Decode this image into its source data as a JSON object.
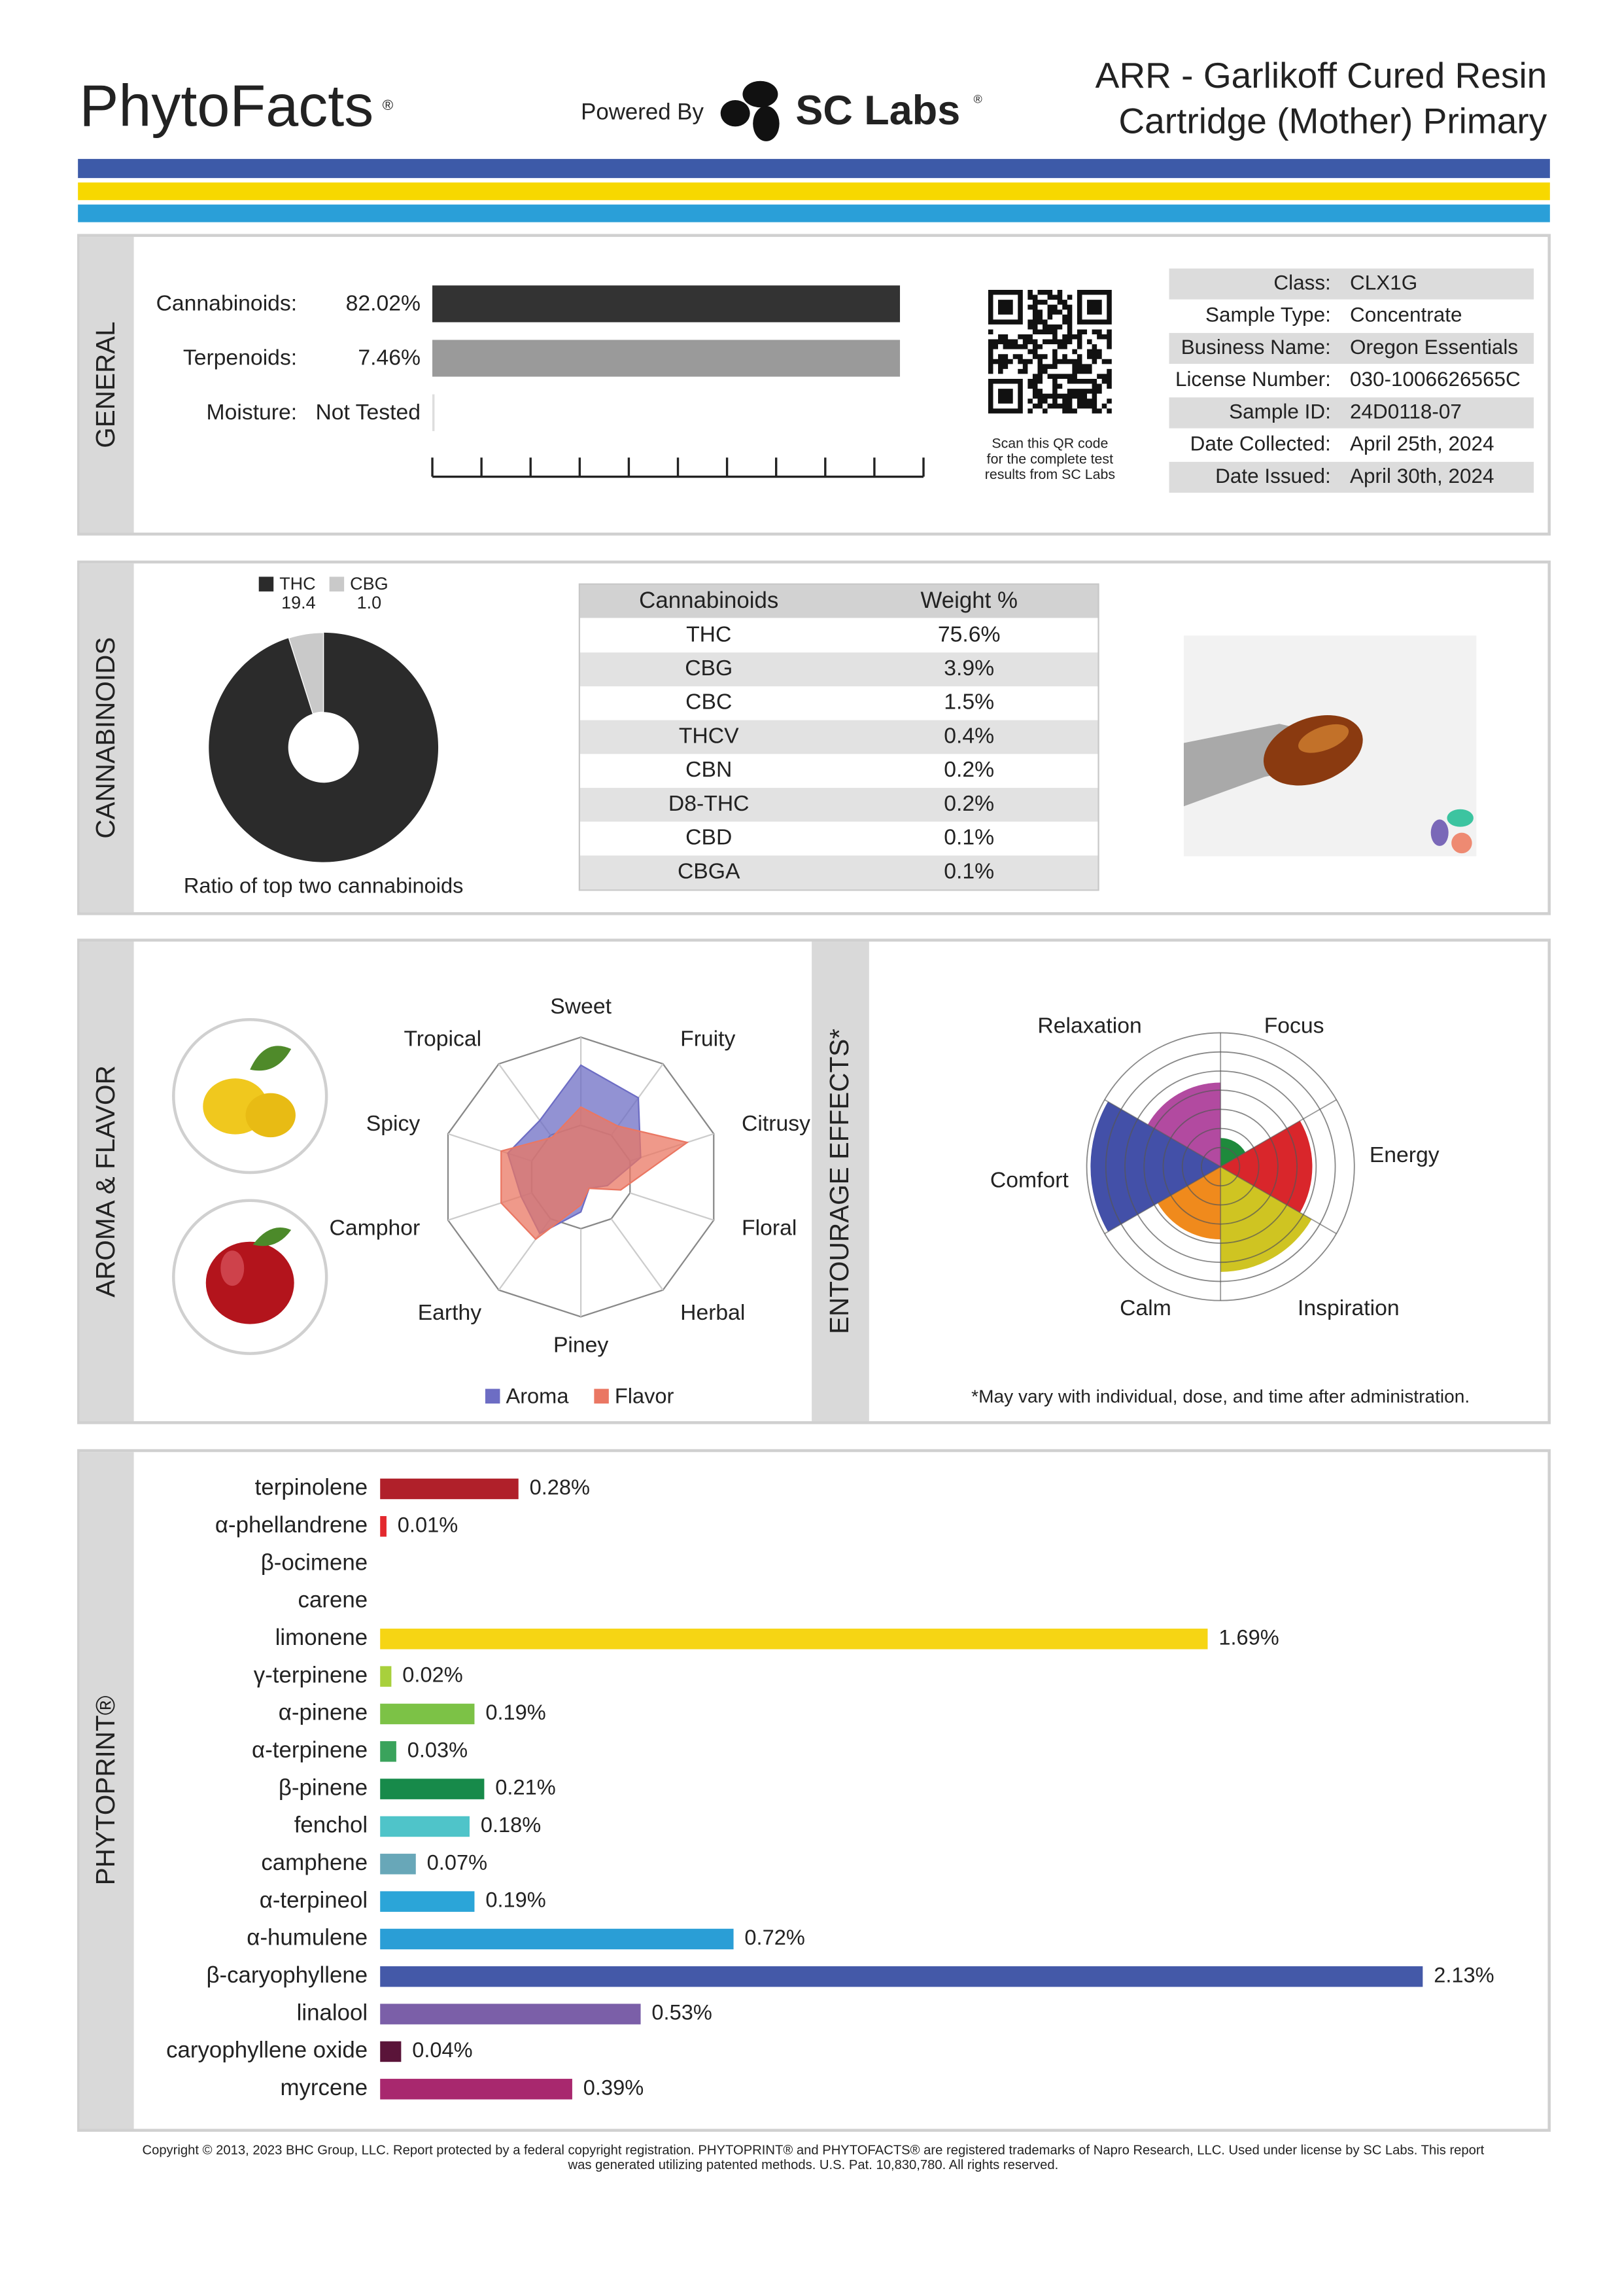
{
  "header": {
    "brand": "PhytoFacts",
    "brand_mark": "®",
    "powered_by": "Powered By",
    "lab": "SC Labs",
    "lab_mark": "®",
    "title_lines": [
      "ARR - Garlikoff Cured Resin",
      "Cartridge (Mother) Primary"
    ]
  },
  "general": {
    "label": "GENERAL",
    "rows": [
      {
        "name": "Cannabinoids:",
        "value": "82.02%"
      },
      {
        "name": "Terpenoids:",
        "value": "7.46%"
      },
      {
        "name": "Moisture:",
        "value": "Not Tested"
      }
    ],
    "qr_caption": [
      "Scan this QR code",
      "for the complete test",
      "results from SC Labs"
    ],
    "info": [
      [
        "Class:",
        "CLX1G"
      ],
      [
        "Sample Type:",
        "Concentrate"
      ],
      [
        "Business Name:",
        "Oregon Essentials"
      ],
      [
        "License Number:",
        "030-1006626565C"
      ],
      [
        "Sample ID:",
        "24D0118-07"
      ],
      [
        "Date Collected:",
        "April 25th, 2024"
      ],
      [
        "Date Issued:",
        "April 30th, 2024"
      ]
    ]
  },
  "cannabinoids": {
    "label": "CANNABINOIDS",
    "table": {
      "header": [
        "Cannabinoids",
        "Weight %"
      ],
      "rows": [
        [
          "THC",
          "75.6%"
        ],
        [
          "CBG",
          "3.9%"
        ],
        [
          "CBC",
          "1.5%"
        ],
        [
          "THCV",
          "0.4%"
        ],
        [
          "CBN",
          "0.2%"
        ],
        [
          "D8-THC",
          "0.2%"
        ],
        [
          "CBD",
          "0.1%"
        ],
        [
          "CBGA",
          "0.1%"
        ]
      ]
    }
  },
  "aroma": {
    "label": "AROMA & FLAVOR"
  },
  "entourage": {
    "label": "ENTOURAGE EFFECTS*",
    "note": "*May vary with individual, dose, and time after administration."
  },
  "phytoprint": {
    "label": "PHYTOPRINT®"
  },
  "chart_data": [
    {
      "type": "pie",
      "categories": [
        "THC",
        "CBG"
      ],
      "values": [
        19.4,
        1.0
      ],
      "value_labels": [
        "19.4",
        "1.0"
      ],
      "colors": [
        "#2b2b2b",
        "#c9c9c9"
      ],
      "caption": "Ratio of top two cannabinoids"
    },
    {
      "type": "radar",
      "categories": [
        "Sweet",
        "Fruity",
        "Citrusy",
        "Floral",
        "Herbal",
        "Piney",
        "Earthy",
        "Camphor",
        "Spicy",
        "Tropical"
      ],
      "rlim": [
        0,
        10
      ],
      "series": [
        {
          "name": "Aroma",
          "color": "#6d6dc4",
          "values": [
            8,
            7,
            4.5,
            2,
            1,
            2.5,
            5,
            4.5,
            5.5,
            5
          ]
        },
        {
          "name": "Flavor",
          "color": "#ea7763",
          "values": [
            5,
            4.5,
            8,
            3,
            1,
            2,
            5.5,
            6,
            6,
            3.5
          ]
        }
      ]
    },
    {
      "type": "rose",
      "categories": [
        "Focus",
        "Energy",
        "Inspiration",
        "Calm",
        "Comfort",
        "Relaxation"
      ],
      "values": [
        1.5,
        4.8,
        5.5,
        3.8,
        6.8,
        4.4
      ],
      "rlim": [
        0,
        7
      ],
      "colors": [
        "#1e8a3c",
        "#d9262b",
        "#cfc422",
        "#f08a1c",
        "#4350a8",
        "#b24aa0"
      ],
      "label_colors": [
        "#1e8a3c",
        "#d9262b",
        "#c9b800",
        "#f08a1c",
        "#3f4ea5",
        "#b24aa0"
      ]
    },
    {
      "type": "bar",
      "orientation": "horizontal",
      "categories": [
        "terpinolene",
        "α-phellandrene",
        "β-ocimene",
        "carene",
        "limonene",
        "γ-terpinene",
        "α-pinene",
        "α-terpinene",
        "β-pinene",
        "fenchol",
        "camphene",
        "α-terpineol",
        "α-humulene",
        "β-caryophyllene",
        "linalool",
        "caryophyllene oxide",
        "myrcene"
      ],
      "values": [
        0.28,
        0.01,
        0,
        0,
        1.69,
        0.02,
        0.19,
        0.03,
        0.21,
        0.18,
        0.07,
        0.19,
        0.72,
        2.13,
        0.53,
        0.04,
        0.39
      ],
      "value_labels": [
        "0.28%",
        "0.01%",
        null,
        null,
        "1.69%",
        "0.02%",
        "0.19%",
        "0.03%",
        "0.21%",
        "0.18%",
        "0.07%",
        "0.19%",
        "0.72%",
        "2.13%",
        "0.53%",
        "0.04%",
        "0.39%"
      ],
      "colors": [
        "#b0202a",
        "#e3292e",
        "#ec5a34",
        "#e08236",
        "#f6d514",
        "#a8d03c",
        "#7cc246",
        "#3aa35c",
        "#178a4a",
        "#4fc4c9",
        "#68a7b8",
        "#2ba5d8",
        "#2a9ed6",
        "#4459a8",
        "#7b5fa8",
        "#5a1439",
        "#a8286e"
      ],
      "label_colors": [
        "#a81c24",
        "#d8262b",
        "#e0452a",
        "#c8652a",
        "#8c7a16",
        "#5c8a24",
        "#3c8a2c",
        "#2a8a4a",
        "#157a40",
        "#2aa0a6",
        "#3a8aa0",
        "#1f8ab8",
        "#1f86bc",
        "#3a4d9c",
        "#6e55a0",
        "#4a1030",
        "#9a2266"
      ]
    },
    {
      "type": "none"
    }
  ],
  "footer": {
    "lines": [
      "Copyright © 2013, 2023 BHC Group, LLC. Report protected by a federal copyright registration. PHYTOPRINT® and PHYTOFACTS® are registered trademarks of Napro Research, LLC. Used under license by SC Labs. This report",
      "was generated utilizing patented methods. U.S. Pat. 10,830,780. All rights reserved."
    ]
  }
}
